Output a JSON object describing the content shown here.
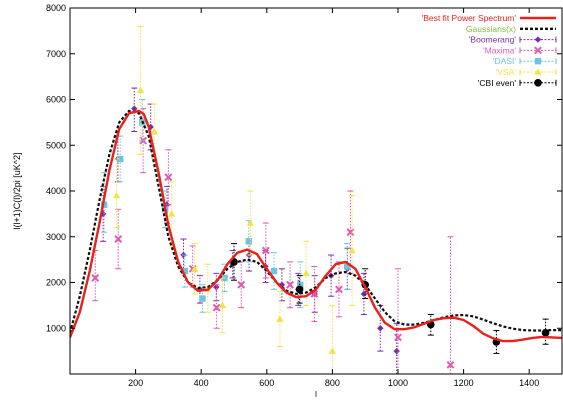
{
  "chart_data": {
    "type": "line",
    "title": "",
    "xlabel": "l",
    "ylabel": "l(l+1)C(l)/2pi [uK^2]",
    "xlim": [
      0,
      1500
    ],
    "ylim": [
      0,
      8000
    ],
    "xticks": [
      200,
      400,
      600,
      800,
      1000,
      1200,
      1400
    ],
    "yticks": [
      1000,
      2000,
      3000,
      4000,
      5000,
      6000,
      7000,
      8000
    ],
    "grid": false,
    "legend_position": "top-right",
    "series": [
      {
        "name": "'Best fit Power Spectrum'",
        "kind": "line",
        "color": "#e8211c",
        "dash": "",
        "x": [
          0,
          30,
          60,
          90,
          120,
          150,
          180,
          210,
          225,
          240,
          270,
          300,
          330,
          360,
          390,
          420,
          450,
          480,
          510,
          540,
          570,
          600,
          630,
          660,
          690,
          720,
          750,
          780,
          810,
          840,
          870,
          900,
          930,
          960,
          990,
          1020,
          1050,
          1080,
          1110,
          1140,
          1170,
          1200,
          1230,
          1260,
          1290,
          1320,
          1350,
          1380,
          1410,
          1440,
          1470,
          1500
        ],
        "y": [
          800,
          1350,
          2250,
          3300,
          4450,
          5350,
          5700,
          5750,
          5680,
          5400,
          4400,
          3250,
          2450,
          2000,
          1820,
          1840,
          2050,
          2400,
          2650,
          2720,
          2620,
          2300,
          2000,
          1780,
          1680,
          1700,
          1850,
          2150,
          2400,
          2450,
          2300,
          1900,
          1450,
          1120,
          980,
          980,
          1020,
          1100,
          1180,
          1220,
          1230,
          1180,
          1050,
          880,
          780,
          720,
          720,
          750,
          790,
          810,
          800,
          790
        ]
      },
      {
        "name": "Gaussians(x)",
        "kind": "line",
        "color": "#111111",
        "dash": "3,2",
        "x": [
          0,
          30,
          60,
          90,
          120,
          150,
          180,
          210,
          240,
          270,
          300,
          330,
          360,
          390,
          420,
          450,
          480,
          510,
          540,
          570,
          600,
          630,
          660,
          690,
          720,
          750,
          780,
          810,
          840,
          870,
          900,
          930,
          960,
          990,
          1020,
          1050,
          1080,
          1110,
          1140,
          1170,
          1200,
          1230,
          1260,
          1290,
          1320,
          1350,
          1380,
          1410,
          1440,
          1470,
          1500
        ],
        "y": [
          900,
          1700,
          2700,
          3800,
          4800,
          5500,
          5750,
          5700,
          5200,
          4100,
          3000,
          2350,
          2000,
          1880,
          1900,
          2050,
          2300,
          2450,
          2500,
          2450,
          2250,
          2000,
          1820,
          1750,
          1780,
          1900,
          2100,
          2200,
          2230,
          2150,
          1950,
          1650,
          1350,
          1150,
          1080,
          1080,
          1120,
          1180,
          1240,
          1280,
          1290,
          1260,
          1190,
          1110,
          1040,
          990,
          960,
          950,
          950,
          960,
          960
        ]
      },
      {
        "name": "'Boomerang'",
        "kind": "errorbar",
        "color": "#7b2da8",
        "marker": "diamond",
        "points": [
          {
            "x": 101,
            "y": 3500,
            "lo": 2900,
            "hi": 4100
          },
          {
            "x": 146,
            "y": 4700,
            "lo": 4200,
            "hi": 5200
          },
          {
            "x": 196,
            "y": 5800,
            "lo": 5300,
            "hi": 6250
          },
          {
            "x": 246,
            "y": 5400,
            "lo": 4900,
            "hi": 5900
          },
          {
            "x": 296,
            "y": 3700,
            "lo": 3300,
            "hi": 4100
          },
          {
            "x": 346,
            "y": 2600,
            "lo": 2250,
            "hi": 2950
          },
          {
            "x": 396,
            "y": 1850,
            "lo": 1550,
            "hi": 2150
          },
          {
            "x": 446,
            "y": 1900,
            "lo": 1600,
            "hi": 2200
          },
          {
            "x": 496,
            "y": 2400,
            "lo": 2100,
            "hi": 2700
          },
          {
            "x": 546,
            "y": 2600,
            "lo": 2250,
            "hi": 2950
          },
          {
            "x": 596,
            "y": 2350,
            "lo": 2000,
            "hi": 2700
          },
          {
            "x": 646,
            "y": 1950,
            "lo": 1600,
            "hi": 2300
          },
          {
            "x": 696,
            "y": 1850,
            "lo": 1500,
            "hi": 2200
          },
          {
            "x": 746,
            "y": 1750,
            "lo": 1350,
            "hi": 2150
          },
          {
            "x": 796,
            "y": 2150,
            "lo": 1700,
            "hi": 2600
          },
          {
            "x": 846,
            "y": 2300,
            "lo": 1850,
            "hi": 2750
          },
          {
            "x": 896,
            "y": 1750,
            "lo": 1300,
            "hi": 2200
          },
          {
            "x": 946,
            "y": 1000,
            "lo": 500,
            "hi": 1500
          },
          {
            "x": 996,
            "y": 500,
            "lo": 0,
            "hi": 1100
          }
        ]
      },
      {
        "name": "'Maxima'",
        "kind": "errorbar",
        "color": "#e05ab0",
        "marker": "cross",
        "points": [
          {
            "x": 77,
            "y": 2100,
            "lo": 1600,
            "hi": 2700
          },
          {
            "x": 147,
            "y": 2950,
            "lo": 2300,
            "hi": 3600
          },
          {
            "x": 223,
            "y": 5100,
            "lo": 4400,
            "hi": 5800
          },
          {
            "x": 300,
            "y": 4300,
            "lo": 3700,
            "hi": 4900
          },
          {
            "x": 374,
            "y": 2300,
            "lo": 1900,
            "hi": 2800
          },
          {
            "x": 447,
            "y": 1450,
            "lo": 1000,
            "hi": 1950
          },
          {
            "x": 522,
            "y": 1950,
            "lo": 1450,
            "hi": 2450
          },
          {
            "x": 597,
            "y": 2700,
            "lo": 2100,
            "hi": 3300
          },
          {
            "x": 671,
            "y": 1950,
            "lo": 1450,
            "hi": 2450
          },
          {
            "x": 745,
            "y": 1750,
            "lo": 1150,
            "hi": 2350
          },
          {
            "x": 820,
            "y": 1850,
            "lo": 1250,
            "hi": 2450
          },
          {
            "x": 855,
            "y": 3100,
            "lo": 2200,
            "hi": 4000
          },
          {
            "x": 1000,
            "y": 800,
            "lo": 0,
            "hi": 2300
          },
          {
            "x": 1160,
            "y": 200,
            "lo": 0,
            "hi": 3000
          }
        ]
      },
      {
        "name": "'DASI'",
        "kind": "errorbar",
        "color": "#6ec3e0",
        "marker": "square",
        "points": [
          {
            "x": 104,
            "y": 3700,
            "lo": 3100,
            "hi": 4400
          },
          {
            "x": 153,
            "y": 4700,
            "lo": 4200,
            "hi": 5200
          },
          {
            "x": 220,
            "y": 5500,
            "lo": 5100,
            "hi": 6000
          },
          {
            "x": 290,
            "y": 3600,
            "lo": 3200,
            "hi": 4000
          },
          {
            "x": 350,
            "y": 2250,
            "lo": 1900,
            "hi": 2600
          },
          {
            "x": 404,
            "y": 1650,
            "lo": 1350,
            "hi": 1950
          },
          {
            "x": 471,
            "y": 2100,
            "lo": 1800,
            "hi": 2400
          },
          {
            "x": 545,
            "y": 2900,
            "lo": 2450,
            "hi": 3350
          },
          {
            "x": 622,
            "y": 2250,
            "lo": 1850,
            "hi": 2650
          },
          {
            "x": 702,
            "y": 1950,
            "lo": 1450,
            "hi": 2450
          },
          {
            "x": 845,
            "y": 2350,
            "lo": 1850,
            "hi": 2850
          }
        ]
      },
      {
        "name": "'VSA'",
        "kind": "errorbar",
        "color": "#f2e24a",
        "marker": "triangle",
        "points": [
          {
            "x": 142,
            "y": 3900,
            "lo": 3200,
            "hi": 4700
          },
          {
            "x": 215,
            "y": 6200,
            "lo": 4800,
            "hi": 7600
          },
          {
            "x": 257,
            "y": 5300,
            "lo": 4700,
            "hi": 5900
          },
          {
            "x": 310,
            "y": 3500,
            "lo": 2800,
            "hi": 4200
          },
          {
            "x": 380,
            "y": 2300,
            "lo": 1750,
            "hi": 2850
          },
          {
            "x": 420,
            "y": 1850,
            "lo": 1350,
            "hi": 2400
          },
          {
            "x": 465,
            "y": 1500,
            "lo": 900,
            "hi": 2100
          },
          {
            "x": 550,
            "y": 3300,
            "lo": 2600,
            "hi": 4000
          },
          {
            "x": 640,
            "y": 1200,
            "lo": 600,
            "hi": 1800
          },
          {
            "x": 720,
            "y": 2200,
            "lo": 1500,
            "hi": 2900
          },
          {
            "x": 800,
            "y": 500,
            "lo": 0,
            "hi": 1500
          },
          {
            "x": 860,
            "y": 2700,
            "lo": 1500,
            "hi": 3900
          }
        ]
      },
      {
        "name": "'CBI even'",
        "kind": "errorbar",
        "color": "#000000",
        "marker": "circle",
        "points": [
          {
            "x": 500,
            "y": 2450,
            "lo": 2050,
            "hi": 2850
          },
          {
            "x": 700,
            "y": 1850,
            "lo": 1550,
            "hi": 2150
          },
          {
            "x": 900,
            "y": 1950,
            "lo": 1650,
            "hi": 2300
          },
          {
            "x": 1100,
            "y": 1080,
            "lo": 850,
            "hi": 1300
          },
          {
            "x": 1300,
            "y": 700,
            "lo": 450,
            "hi": 950
          },
          {
            "x": 1450,
            "y": 900,
            "lo": 650,
            "hi": 1200
          }
        ]
      }
    ]
  }
}
